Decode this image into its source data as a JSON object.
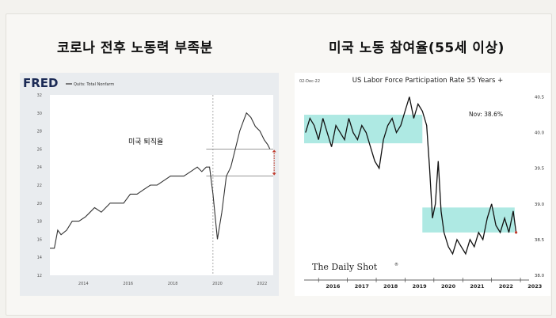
{
  "headings": {
    "left": "코로나 전후 노동력 부족분",
    "right": "미국 노동 참여율(55세 이상)"
  },
  "chart_data": [
    {
      "type": "line",
      "source_logo": "FRED",
      "legend": "Quits: Total Nonfarm",
      "annotation": "미국 퇴직율",
      "x_tick_labels": [
        "2014",
        "2016",
        "2018",
        "2020",
        "2022"
      ],
      "y_ticks": [
        "12",
        "14",
        "16",
        "18",
        "20",
        "22",
        "24",
        "26",
        "28",
        "30",
        "32"
      ],
      "ylim": [
        12,
        32
      ],
      "xlim": [
        2013.0,
        2023.0
      ],
      "reference_lines": [
        26,
        23
      ],
      "series": [
        {
          "x": [
            2013.0,
            2013.2,
            2013.35,
            2013.5,
            2013.75,
            2014.0,
            2014.3,
            2014.6,
            2014.8,
            2015.0,
            2015.3,
            2015.5,
            2015.7,
            2016.0,
            2016.3,
            2016.6,
            2016.9,
            2017.2,
            2017.5,
            2017.8,
            2018.1,
            2018.4,
            2018.7,
            2019.0,
            2019.3,
            2019.6,
            2019.8,
            2020.0,
            2020.15,
            2020.3,
            2020.5,
            2020.7,
            2020.9,
            2021.1,
            2021.3,
            2021.5,
            2021.65,
            2021.8,
            2022.0,
            2022.2,
            2022.4,
            2022.6,
            2022.75,
            2022.85
          ],
          "y": [
            15,
            15,
            17,
            16.5,
            17,
            18,
            18,
            18.5,
            19,
            19.5,
            19,
            19.5,
            20,
            20,
            20,
            21,
            21,
            21.5,
            22,
            22,
            22.5,
            23,
            23,
            23,
            23.5,
            24,
            23.5,
            24,
            24,
            21,
            16,
            19,
            23,
            24,
            26,
            28,
            29,
            30,
            29.5,
            28.5,
            28,
            27,
            26.5,
            26
          ]
        }
      ]
    },
    {
      "type": "line",
      "title": "US Labor Force Participation Rate 55 Years +",
      "date_label": "02-Dec-22",
      "annotation": "Nov:   38.6%",
      "watermark": "The Daily Shot",
      "watermark_mark": "®",
      "x_tick_labels": [
        "2016",
        "2017",
        "2018",
        "2019",
        "2020",
        "2021",
        "2022",
        "2023"
      ],
      "y_tick_labels": [
        "40.5",
        "40.0",
        "39.5",
        "39.0",
        "38.5",
        "38.0"
      ],
      "y_ticks": [
        40.5,
        40.0,
        39.5,
        39.0,
        38.5,
        38.0
      ],
      "ylim": [
        38.0,
        40.55
      ],
      "xlim": [
        2015.5,
        2023.3
      ],
      "highlight_bands": [
        {
          "x": [
            2015.5,
            2019.6
          ],
          "y": [
            39.85,
            40.25
          ]
        },
        {
          "x": [
            2019.6,
            2022.8
          ],
          "y": [
            38.6,
            38.95
          ]
        }
      ],
      "series": [
        {
          "x": [
            2015.55,
            2015.7,
            2015.85,
            2016.0,
            2016.15,
            2016.3,
            2016.45,
            2016.6,
            2016.75,
            2016.9,
            2017.05,
            2017.2,
            2017.35,
            2017.5,
            2017.65,
            2017.8,
            2017.95,
            2018.1,
            2018.25,
            2018.4,
            2018.55,
            2018.7,
            2018.85,
            2019.0,
            2019.15,
            2019.3,
            2019.45,
            2019.6,
            2019.75,
            2019.85,
            2019.95,
            2020.05,
            2020.15,
            2020.25,
            2020.35,
            2020.5,
            2020.65,
            2020.8,
            2020.95,
            2021.1,
            2021.25,
            2021.4,
            2021.55,
            2021.7,
            2021.85,
            2022.0,
            2022.15,
            2022.3,
            2022.45,
            2022.6,
            2022.75,
            2022.85
          ],
          "y": [
            40.0,
            40.2,
            40.1,
            39.9,
            40.2,
            40.0,
            39.8,
            40.1,
            40.0,
            39.9,
            40.2,
            40.0,
            39.9,
            40.1,
            40.0,
            39.8,
            39.6,
            39.5,
            39.9,
            40.1,
            40.2,
            40.0,
            40.1,
            40.3,
            40.5,
            40.2,
            40.4,
            40.3,
            40.1,
            39.5,
            38.8,
            39.0,
            39.6,
            38.9,
            38.6,
            38.4,
            38.3,
            38.5,
            38.4,
            38.3,
            38.5,
            38.4,
            38.6,
            38.5,
            38.8,
            39.0,
            38.7,
            38.6,
            38.8,
            38.6,
            38.9,
            38.6
          ]
        }
      ]
    }
  ]
}
